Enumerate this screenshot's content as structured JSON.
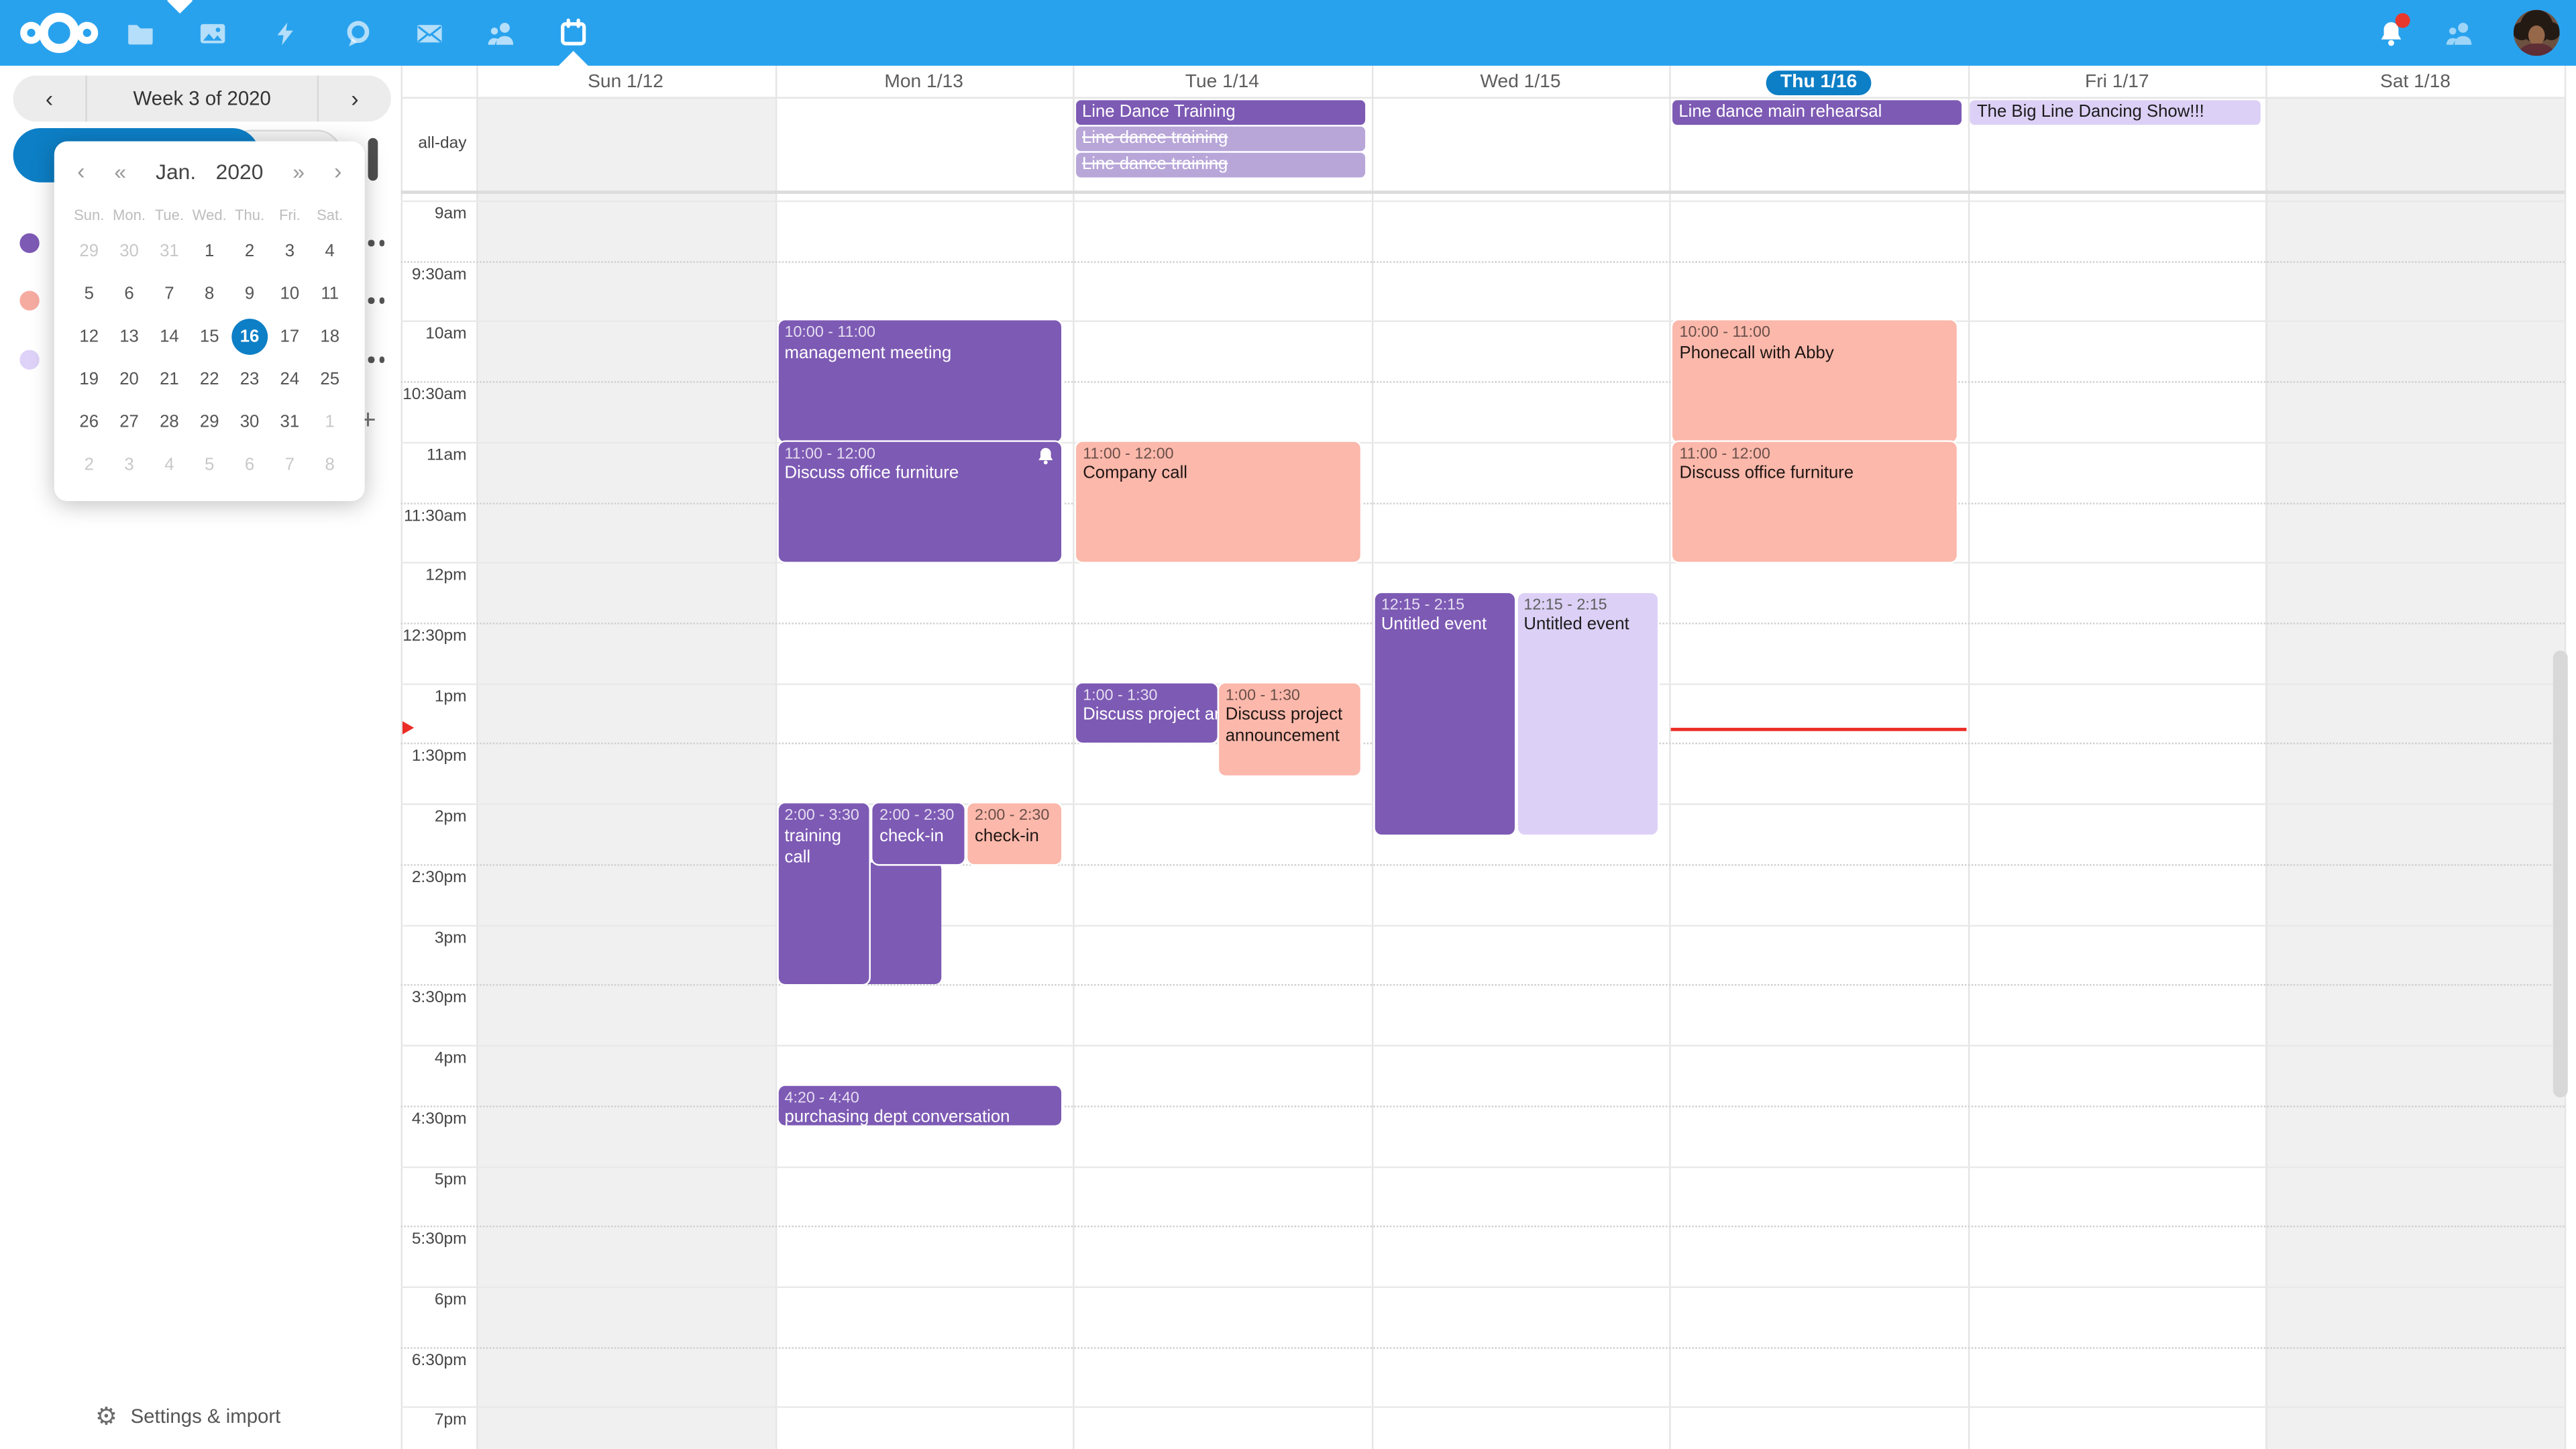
{
  "topbar": {
    "apps": [
      {
        "icon": "files-icon"
      },
      {
        "icon": "photos-icon"
      },
      {
        "icon": "activity-icon"
      },
      {
        "icon": "talk-icon"
      },
      {
        "icon": "mail-icon"
      },
      {
        "icon": "contacts-icon"
      },
      {
        "icon": "calendar-icon",
        "active": true
      }
    ],
    "notification_badge_color": "#e9382b"
  },
  "sidebar": {
    "week_label": "Week 3 of 2020",
    "calendars": [
      {
        "color": "#7d5ab4"
      },
      {
        "color": "#f6aba1"
      },
      {
        "color": "#ded2f8"
      }
    ],
    "add_calendar_label": "+",
    "settings_label": "Settings & import"
  },
  "datepicker": {
    "prev": "‹",
    "prev_fast": "«",
    "next_fast": "»",
    "next": "›",
    "month": "Jan.",
    "year": "2020",
    "weekdays": [
      "Sun.",
      "Mon.",
      "Tue.",
      "Wed.",
      "Thu.",
      "Fri.",
      "Sat."
    ],
    "days": [
      {
        "d": 29,
        "muted": true
      },
      {
        "d": 30,
        "muted": true
      },
      {
        "d": 31,
        "muted": true
      },
      {
        "d": 1
      },
      {
        "d": 2
      },
      {
        "d": 3
      },
      {
        "d": 4
      },
      {
        "d": 5
      },
      {
        "d": 6
      },
      {
        "d": 7
      },
      {
        "d": 8
      },
      {
        "d": 9
      },
      {
        "d": 10
      },
      {
        "d": 11
      },
      {
        "d": 12
      },
      {
        "d": 13
      },
      {
        "d": 14
      },
      {
        "d": 15
      },
      {
        "d": 16,
        "selected": true
      },
      {
        "d": 17
      },
      {
        "d": 18
      },
      {
        "d": 19
      },
      {
        "d": 20
      },
      {
        "d": 21
      },
      {
        "d": 22
      },
      {
        "d": 23
      },
      {
        "d": 24
      },
      {
        "d": 25
      },
      {
        "d": 26
      },
      {
        "d": 27
      },
      {
        "d": 28
      },
      {
        "d": 29
      },
      {
        "d": 30
      },
      {
        "d": 31
      },
      {
        "d": 1,
        "muted": true
      },
      {
        "d": 2,
        "muted": true
      },
      {
        "d": 3,
        "muted": true
      },
      {
        "d": 4,
        "muted": true
      },
      {
        "d": 5,
        "muted": true
      },
      {
        "d": 6,
        "muted": true
      },
      {
        "d": 7,
        "muted": true
      },
      {
        "d": 8,
        "muted": true
      }
    ]
  },
  "calendar": {
    "all_day_label": "all-day",
    "days": [
      {
        "label": "Sun 1/12",
        "weekend": true
      },
      {
        "label": "Mon 1/13"
      },
      {
        "label": "Tue 1/14"
      },
      {
        "label": "Wed 1/15"
      },
      {
        "label": "Thu 1/16",
        "selected": true
      },
      {
        "label": "Fri 1/17"
      },
      {
        "label": "Sat 1/18",
        "weekend": true
      }
    ],
    "times": [
      "9am",
      "9:30am",
      "10am",
      "10:30am",
      "11am",
      "11:30am",
      "12pm",
      "12:30pm",
      "1pm",
      "1:30pm",
      "2pm",
      "2:30pm",
      "3pm",
      "3:30pm",
      "4pm",
      "4:30pm",
      "5pm",
      "5:30pm",
      "6pm",
      "6:30pm",
      "7pm"
    ],
    "colors": {
      "purple": "#7d5ab4",
      "purple_light": "#b8a6d9",
      "lavender": "#ddd0f6",
      "salmon": "#fbb8ab",
      "now_red": "#ec2c26",
      "selected_blue": "#0d7fc6",
      "topbar_blue": "#29a2ee"
    },
    "all_day_events": [
      {
        "day": 2,
        "row": 0,
        "title": "Line Dance Training",
        "color": "purple"
      },
      {
        "day": 2,
        "row": 1,
        "title": "Line dance training",
        "color": "purple_light",
        "strike": true
      },
      {
        "day": 2,
        "row": 2,
        "title": "Line dance training",
        "color": "purple_light",
        "strike": true
      },
      {
        "day": 4,
        "row": 0,
        "title": "Line dance main rehearsal",
        "color": "purple"
      },
      {
        "day": 5,
        "row": 0,
        "title": "The Big Line Dancing Show!!!",
        "color": "lavender"
      }
    ],
    "events": [
      {
        "day": 1,
        "time": "10:00 - 11:00",
        "title": "management meeting",
        "color": "purple",
        "start": 60,
        "end": 120
      },
      {
        "day": 1,
        "time": "11:00 - 12:00",
        "title": "Discuss office furniture",
        "color": "purple",
        "start": 120,
        "end": 180,
        "bell": true
      },
      {
        "day": 1,
        "time": "2:00 - 3:30",
        "title": "training call",
        "color": "purple",
        "start": 300,
        "end": 390,
        "fx": 0,
        "fw": 0.328,
        "extend": {
          "start": 330,
          "fw": 0.575
        }
      },
      {
        "day": 1,
        "time": "2:00 - 2:30",
        "title": "check-in",
        "color": "purple",
        "start": 300,
        "end": 330,
        "fx": 0.333,
        "fw": 0.328
      },
      {
        "day": 1,
        "time": "2:00 - 2:30",
        "title": "check-in",
        "color": "salmon",
        "start": 300,
        "end": 330,
        "fx": 0.667,
        "fw": 0.333
      },
      {
        "day": 1,
        "time": "4:20 - 4:40",
        "title": "purchasing dept conversation",
        "color": "purple",
        "start": 440,
        "end": 460
      },
      {
        "day": 2,
        "time": "11:00 - 12:00",
        "title": "Company call",
        "color": "salmon",
        "start": 120,
        "end": 180
      },
      {
        "day": 2,
        "time": "1:00 - 1:30",
        "title": "Discuss project announcement",
        "color": "purple",
        "start": 240,
        "end": 270,
        "fx": 0,
        "fw": 0.5,
        "nowrap": true
      },
      {
        "day": 2,
        "time": "1:00 - 1:30",
        "title": "Discuss project announcement",
        "color": "salmon",
        "start": 240,
        "end": 270,
        "fx": 0.5,
        "fw": 0.5,
        "minh": 56
      },
      {
        "day": 3,
        "time": "12:15 - 2:15",
        "title": "Untitled event",
        "color": "purple",
        "start": 195,
        "end": 315,
        "fx": 0,
        "fw": 0.5
      },
      {
        "day": 3,
        "time": "12:15 - 2:15",
        "title": "Untitled event",
        "color": "lavender",
        "start": 195,
        "end": 315,
        "fx": 0.5,
        "fw": 0.5
      },
      {
        "day": 4,
        "time": "10:00 - 11:00",
        "title": "Phonecall with Abby",
        "color": "salmon",
        "start": 60,
        "end": 120
      },
      {
        "day": 4,
        "time": "11:00 - 12:00",
        "title": "Discuss office furniture",
        "color": "salmon",
        "start": 120,
        "end": 180
      }
    ],
    "now": {
      "day": 4,
      "minutes_from_9am": 262
    }
  }
}
